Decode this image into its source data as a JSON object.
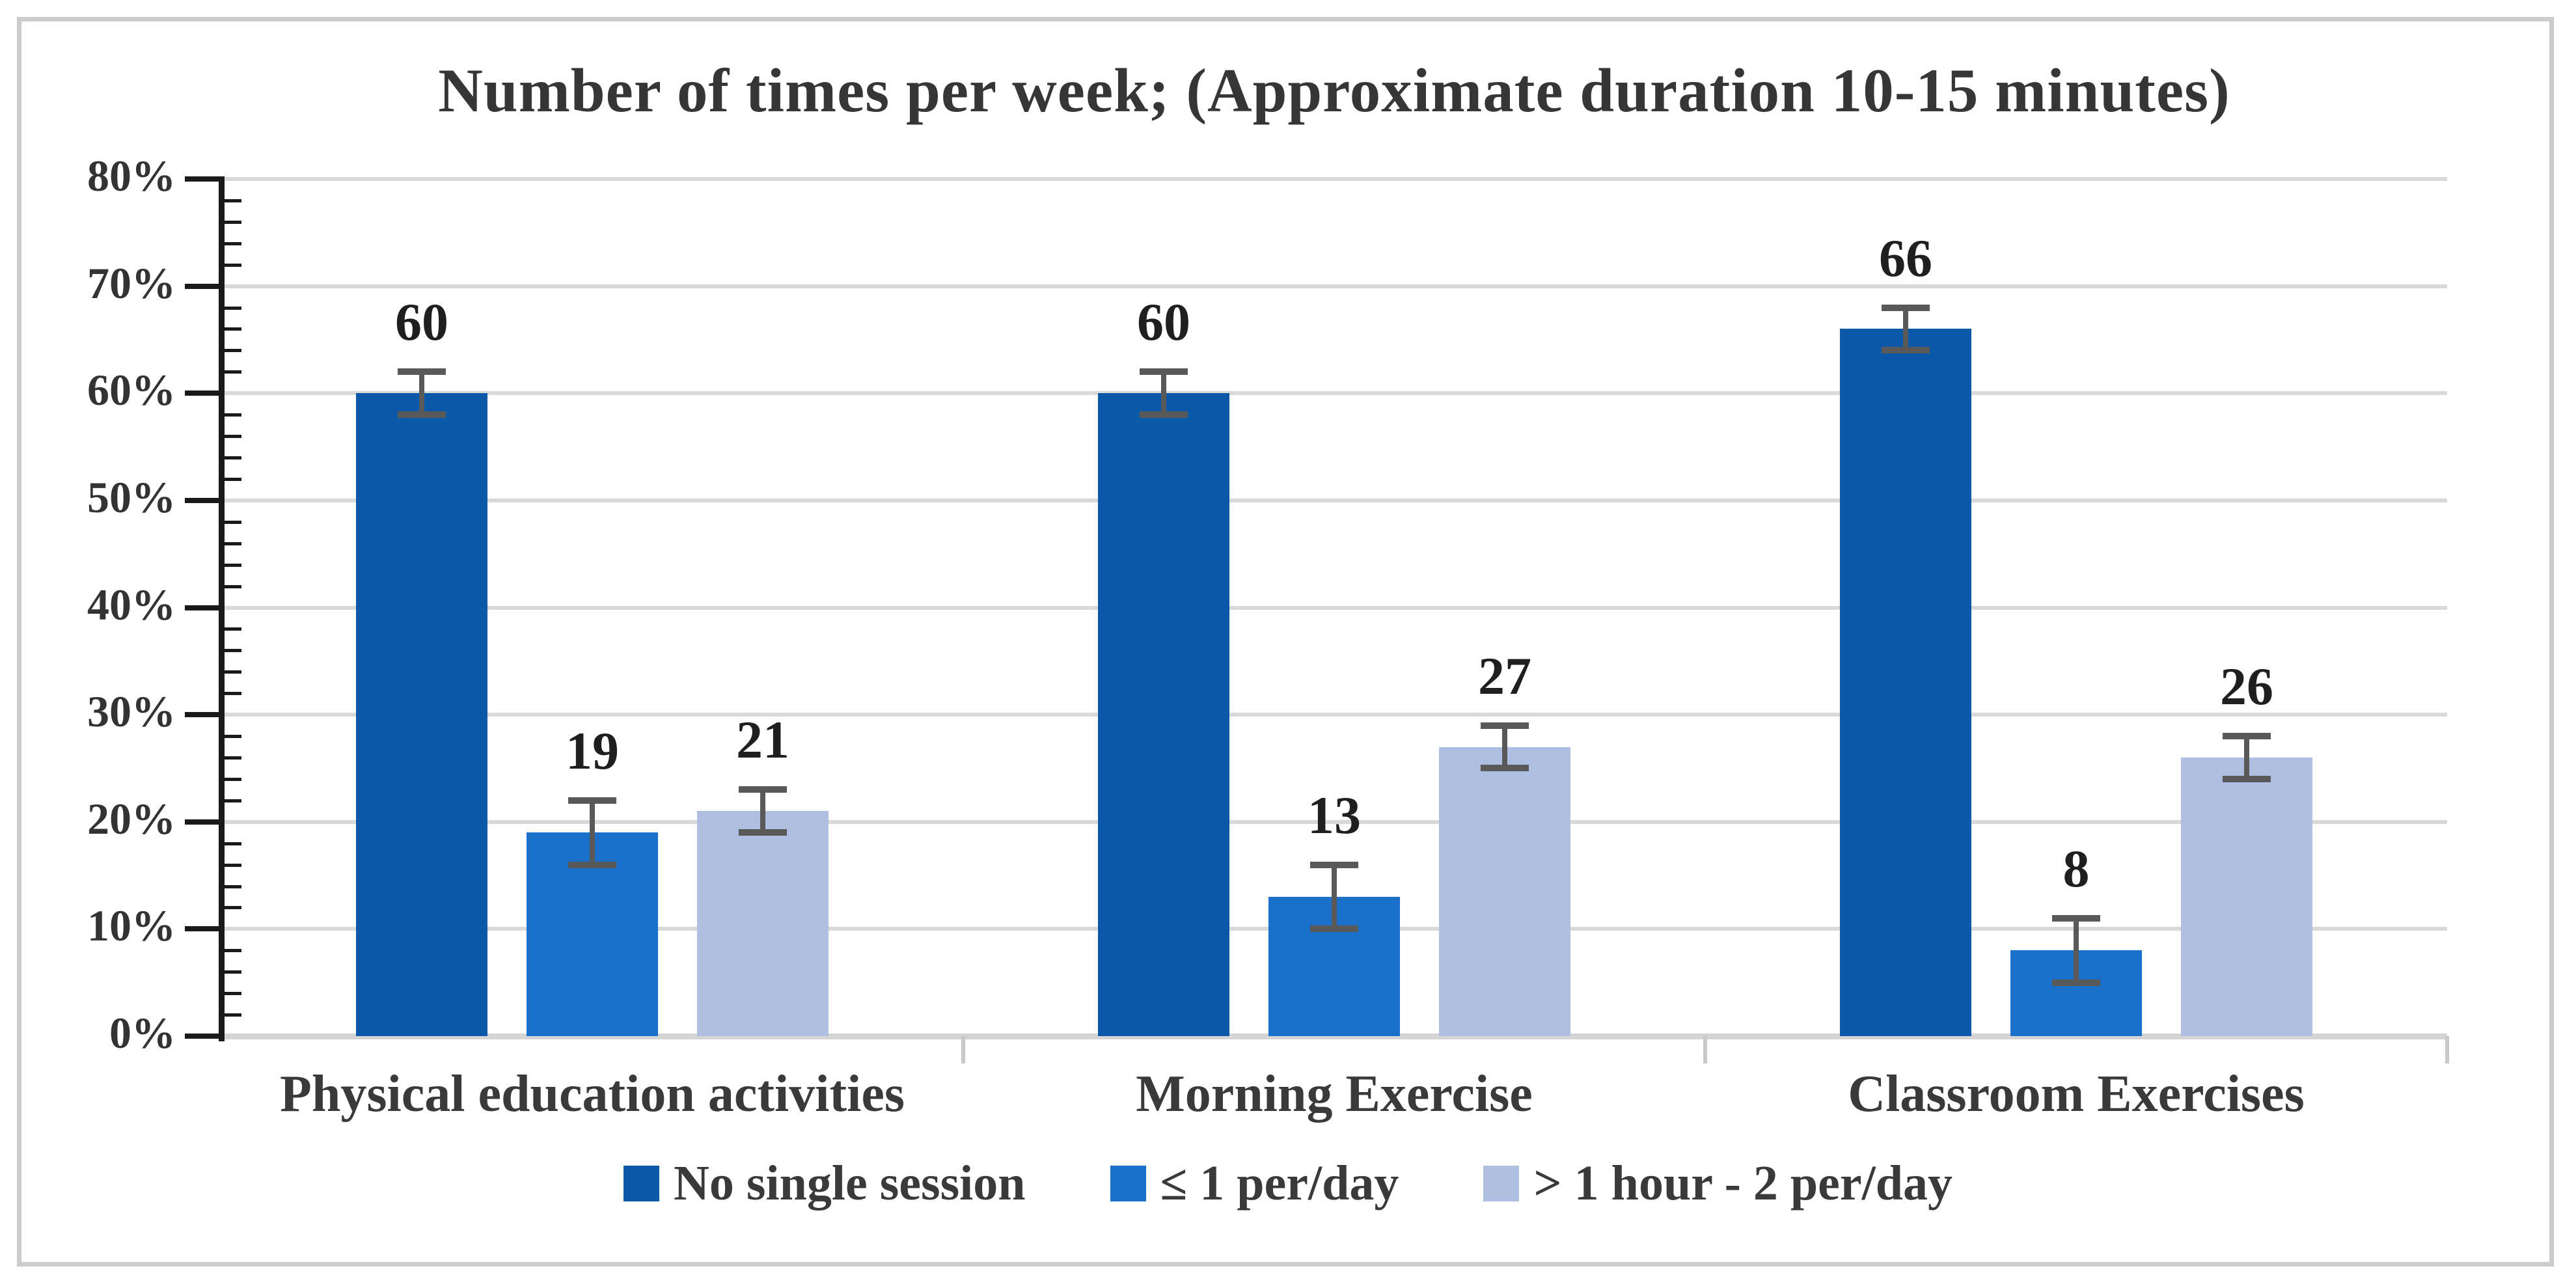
{
  "chart_data": {
    "type": "bar",
    "title": "Number of times per week; (Approximate duration 10-15 minutes)",
    "categories": [
      "Physical education activities",
      "Morning Exercise",
      "Classroom Exercises"
    ],
    "series": [
      {
        "name": "No single session",
        "color": "#0B5AA7",
        "values": [
          60,
          60,
          66
        ],
        "errors": [
          2,
          2,
          2
        ]
      },
      {
        "name": "≤ 1 per/day",
        "color": "#1B71CA",
        "values": [
          19,
          13,
          8
        ],
        "errors": [
          3,
          3,
          3
        ]
      },
      {
        "name": "> 1 hour - 2 per/day",
        "color": "#AFBFE1",
        "values": [
          21,
          27,
          26
        ],
        "errors": [
          2,
          2,
          2
        ]
      }
    ],
    "y_axis": {
      "min": 0,
      "max": 80,
      "major_step": 10,
      "minor_step": 2,
      "tick_labels": [
        "0%",
        "10%",
        "20%",
        "30%",
        "40%",
        "50%",
        "60%",
        "70%",
        "80%"
      ]
    },
    "grid": true,
    "error_bars": true,
    "data_labels": true,
    "legend_position": "bottom",
    "colors": {
      "gridline": "#D9D9D9",
      "error_bar": "#595959",
      "axis": "#1A1A1A",
      "text": "#363636",
      "frame_border": "#CCCCCC"
    }
  }
}
